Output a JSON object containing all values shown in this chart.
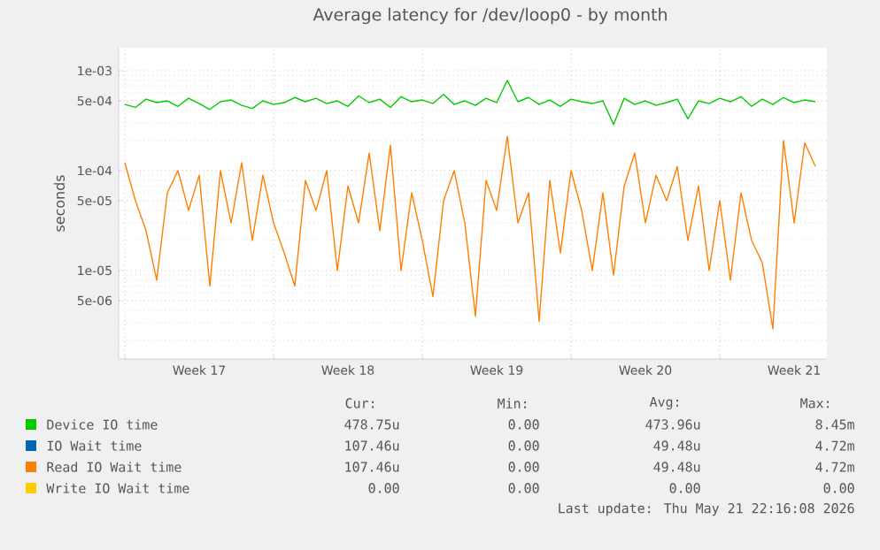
{
  "chart_data": {
    "type": "line",
    "title": "Average latency for /dev/loop0 - by month",
    "ylabel": "seconds",
    "log": "y",
    "grid": true,
    "legend": "bottom",
    "xlim": [
      "2026-04-19T17:00",
      "2026-05-23T01:00"
    ],
    "xticks": [
      {
        "value": "2026-04-20T00:00",
        "label": null
      },
      {
        "value": "2026-04-23T12:00",
        "label": "Week 17"
      },
      {
        "value": "2026-04-27T00:00",
        "label": null
      },
      {
        "value": "2026-04-30T12:00",
        "label": "Week 18"
      },
      {
        "value": "2026-05-04T00:00",
        "label": null
      },
      {
        "value": "2026-05-07T12:00",
        "label": "Week 19"
      },
      {
        "value": "2026-05-11T00:00",
        "label": null
      },
      {
        "value": "2026-05-14T12:00",
        "label": "Week 20"
      },
      {
        "value": "2026-05-18T00:00",
        "label": null
      },
      {
        "value": "2026-05-21T12:00",
        "label": "Week 21"
      }
    ],
    "ylim": [
      1.3e-06,
      0.0017
    ],
    "yticks": [
      {
        "value": 5e-06,
        "label": "5e-06"
      },
      {
        "value": 1e-05,
        "label": "1e-05"
      },
      {
        "value": 5e-05,
        "label": "5e-05"
      },
      {
        "value": 0.0001,
        "label": "1e-04"
      },
      {
        "value": 0.0005,
        "label": "5e-04"
      },
      {
        "value": 0.001,
        "label": "1e-03"
      }
    ],
    "x": [
      "2026-04-20T00:00",
      "2026-04-20T12:00",
      "2026-04-21T00:00",
      "2026-04-21T12:00",
      "2026-04-22T00:00",
      "2026-04-22T12:00",
      "2026-04-23T00:00",
      "2026-04-23T12:00",
      "2026-04-24T00:00",
      "2026-04-24T12:00",
      "2026-04-25T00:00",
      "2026-04-25T12:00",
      "2026-04-26T00:00",
      "2026-04-26T12:00",
      "2026-04-27T00:00",
      "2026-04-27T12:00",
      "2026-04-28T00:00",
      "2026-04-28T12:00",
      "2026-04-29T00:00",
      "2026-04-29T12:00",
      "2026-04-30T00:00",
      "2026-04-30T12:00",
      "2026-05-01T00:00",
      "2026-05-01T12:00",
      "2026-05-02T00:00",
      "2026-05-02T12:00",
      "2026-05-03T00:00",
      "2026-05-03T12:00",
      "2026-05-04T00:00",
      "2026-05-04T12:00",
      "2026-05-05T00:00",
      "2026-05-05T12:00",
      "2026-05-06T00:00",
      "2026-05-06T12:00",
      "2026-05-07T00:00",
      "2026-05-07T12:00",
      "2026-05-08T00:00",
      "2026-05-08T12:00",
      "2026-05-09T00:00",
      "2026-05-09T12:00",
      "2026-05-10T00:00",
      "2026-05-10T12:00",
      "2026-05-11T00:00",
      "2026-05-11T12:00",
      "2026-05-12T00:00",
      "2026-05-12T12:00",
      "2026-05-13T00:00",
      "2026-05-13T12:00",
      "2026-05-14T00:00",
      "2026-05-14T12:00",
      "2026-05-15T00:00",
      "2026-05-15T12:00",
      "2026-05-16T00:00",
      "2026-05-16T12:00",
      "2026-05-17T00:00",
      "2026-05-17T12:00",
      "2026-05-18T00:00",
      "2026-05-18T12:00",
      "2026-05-19T00:00",
      "2026-05-19T12:00",
      "2026-05-20T00:00",
      "2026-05-20T12:00",
      "2026-05-21T00:00",
      "2026-05-21T12:00",
      "2026-05-22T00:00",
      "2026-05-22T12:00"
    ],
    "series": [
      {
        "name": "Device IO time",
        "color": "#00cc00",
        "values": [
          0.00046,
          0.00043,
          0.00052,
          0.00048,
          0.0005,
          0.00044,
          0.00053,
          0.00047,
          0.00041,
          0.00049,
          0.00051,
          0.00045,
          0.00042,
          0.0005,
          0.00046,
          0.00048,
          0.00054,
          0.00049,
          0.00053,
          0.00047,
          0.0005,
          0.00044,
          0.00056,
          0.00048,
          0.00052,
          0.00043,
          0.00055,
          0.00049,
          0.00051,
          0.00047,
          0.00058,
          0.00046,
          0.0005,
          0.00045,
          0.00053,
          0.00048,
          0.0008,
          0.00049,
          0.00054,
          0.00046,
          0.00051,
          0.00044,
          0.00052,
          0.00049,
          0.00047,
          0.0005,
          0.00029,
          0.00053,
          0.00046,
          0.0005,
          0.00045,
          0.00048,
          0.00052,
          0.00033,
          0.0005,
          0.00047,
          0.00053,
          0.00049,
          0.00055,
          0.00044,
          0.00052,
          0.00046,
          0.00054,
          0.00048,
          0.00051,
          0.00049
        ]
      },
      {
        "name": "IO Wait time",
        "color": "#0066b3",
        "values": [
          null,
          null,
          null,
          null,
          null,
          null,
          null,
          null,
          null,
          null,
          null,
          null,
          null,
          null,
          null,
          null,
          null,
          null,
          null,
          null,
          null,
          null,
          null,
          null,
          null,
          null,
          null,
          null,
          null,
          null,
          null,
          null,
          null,
          null,
          null,
          null,
          null,
          null,
          null,
          null,
          null,
          null,
          null,
          null,
          null,
          null,
          null,
          null,
          null,
          null,
          null,
          null,
          null,
          null,
          null,
          null,
          null,
          null,
          null,
          null,
          null,
          null,
          null,
          null,
          null,
          null
        ]
      },
      {
        "name": "Read IO Wait time",
        "color": "#ff8000",
        "values": [
          0.00012,
          5e-05,
          2.5e-05,
          8e-06,
          6e-05,
          0.0001,
          4e-05,
          9e-05,
          7e-06,
          0.0001,
          3e-05,
          0.00012,
          2e-05,
          9e-05,
          3e-05,
          1.5e-05,
          7e-06,
          8e-05,
          4e-05,
          0.0001,
          1e-05,
          7e-05,
          3e-05,
          0.00015,
          2.5e-05,
          0.00018,
          1e-05,
          6e-05,
          2e-05,
          5.5e-06,
          5e-05,
          0.0001,
          3e-05,
          3.5e-06,
          8e-05,
          4e-05,
          0.00022,
          3e-05,
          6e-05,
          3.1e-06,
          8e-05,
          1.5e-05,
          0.0001,
          4e-05,
          1e-05,
          6e-05,
          9e-06,
          7e-05,
          0.00015,
          3e-05,
          9e-05,
          5e-05,
          0.00011,
          2e-05,
          7e-05,
          1e-05,
          5e-05,
          8e-06,
          6e-05,
          2e-05,
          1.2e-05,
          2.6e-06,
          0.0002,
          3e-05,
          0.00019,
          0.00011
        ]
      },
      {
        "name": "Write IO Wait time",
        "color": "#ffcc00",
        "values": [
          null,
          null,
          null,
          null,
          null,
          null,
          null,
          null,
          null,
          null,
          null,
          null,
          null,
          null,
          null,
          null,
          null,
          null,
          null,
          null,
          null,
          null,
          null,
          null,
          null,
          null,
          null,
          null,
          null,
          null,
          null,
          null,
          null,
          null,
          null,
          null,
          null,
          null,
          null,
          null,
          null,
          null,
          null,
          null,
          null,
          null,
          null,
          null,
          null,
          null,
          null,
          null,
          null,
          null,
          null,
          null,
          null,
          null,
          null,
          null,
          null,
          null,
          null,
          null,
          null,
          null
        ]
      }
    ],
    "annotations": [
      "Cur:",
      "Min:",
      "Avg:",
      "Max:",
      "478.75u",
      "0.00",
      "473.96u",
      "8.45m",
      "107.46u",
      "0.00",
      "49.48u",
      "4.72m",
      "107.46u",
      "0.00",
      "49.48u",
      "4.72m",
      "0.00",
      "0.00",
      "0.00",
      "0.00",
      "Last update: Thu May 21 22:16:08 2026"
    ]
  }
}
